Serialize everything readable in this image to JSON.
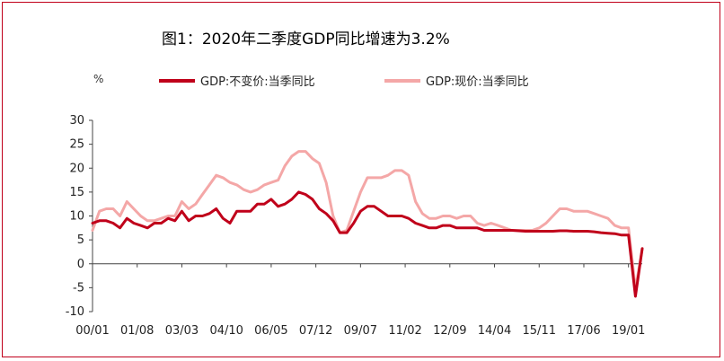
{
  "chart_data": {
    "type": "line",
    "title": "图1：2020年二季度GDP同比增速为3.2%",
    "ylabel": "%",
    "ylim": [
      -10,
      30
    ],
    "yticks": [
      "30",
      "25",
      "20",
      "15",
      "10",
      "5",
      "0",
      "-5",
      "-10"
    ],
    "xtick_labels": [
      "00/01",
      "01/08",
      "03/03",
      "04/10",
      "06/05",
      "07/12",
      "09/07",
      "11/02",
      "12/09",
      "14/04",
      "15/11",
      "17/06",
      "19/01"
    ],
    "legend_position": "top",
    "grid": false,
    "x_start": "2000Q1",
    "x_end": "2020Q2",
    "series": [
      {
        "name": "GDP:不变价:当季同比",
        "color": "#c0001a",
        "values": [
          8.5,
          9.0,
          9.0,
          8.5,
          7.5,
          9.5,
          8.5,
          8.0,
          7.5,
          8.5,
          8.5,
          9.5,
          9.0,
          11.0,
          9.0,
          10.0,
          10.0,
          10.5,
          11.5,
          9.5,
          8.5,
          11.0,
          11.0,
          11.0,
          12.5,
          12.5,
          13.5,
          12.0,
          12.5,
          13.5,
          15.0,
          14.5,
          13.5,
          11.5,
          10.5,
          9.0,
          6.5,
          6.5,
          8.5,
          11.0,
          12.0,
          12.0,
          11.0,
          10.0,
          10.0,
          10.0,
          9.5,
          8.5,
          8.0,
          7.5,
          7.5,
          8.0,
          8.0,
          7.5,
          7.5,
          7.5,
          7.5,
          7.0,
          7.0,
          7.0,
          7.0,
          7.0,
          6.9,
          6.8,
          6.8,
          6.8,
          6.8,
          6.8,
          6.9,
          6.9,
          6.8,
          6.8,
          6.8,
          6.7,
          6.5,
          6.4,
          6.3,
          6.0,
          6.0,
          -6.8,
          3.2
        ]
      },
      {
        "name": "GDP:现价:当季同比",
        "color": "#f4a7a7",
        "values": [
          7.0,
          11.0,
          11.5,
          11.5,
          10.0,
          13.0,
          11.5,
          10.0,
          9.0,
          9.0,
          9.5,
          10.0,
          10.0,
          13.0,
          11.5,
          12.5,
          14.5,
          16.5,
          18.5,
          18.0,
          17.0,
          16.5,
          15.5,
          15.0,
          15.5,
          16.5,
          17.0,
          17.5,
          20.5,
          22.5,
          23.5,
          23.5,
          22.0,
          21.0,
          17.0,
          10.0,
          6.5,
          7.0,
          11.0,
          15.0,
          18.0,
          18.0,
          18.0,
          18.5,
          19.5,
          19.5,
          18.5,
          13.0,
          10.5,
          9.5,
          9.5,
          10.0,
          10.0,
          9.5,
          10.0,
          10.0,
          8.5,
          8.0,
          8.5,
          8.0,
          7.5,
          7.0,
          7.0,
          7.0,
          7.0,
          7.5,
          8.5,
          10.0,
          11.5,
          11.5,
          11.0,
          11.0,
          11.0,
          10.5,
          10.0,
          9.5,
          8.0,
          7.5,
          7.5,
          -5.3,
          3.1
        ]
      }
    ]
  }
}
